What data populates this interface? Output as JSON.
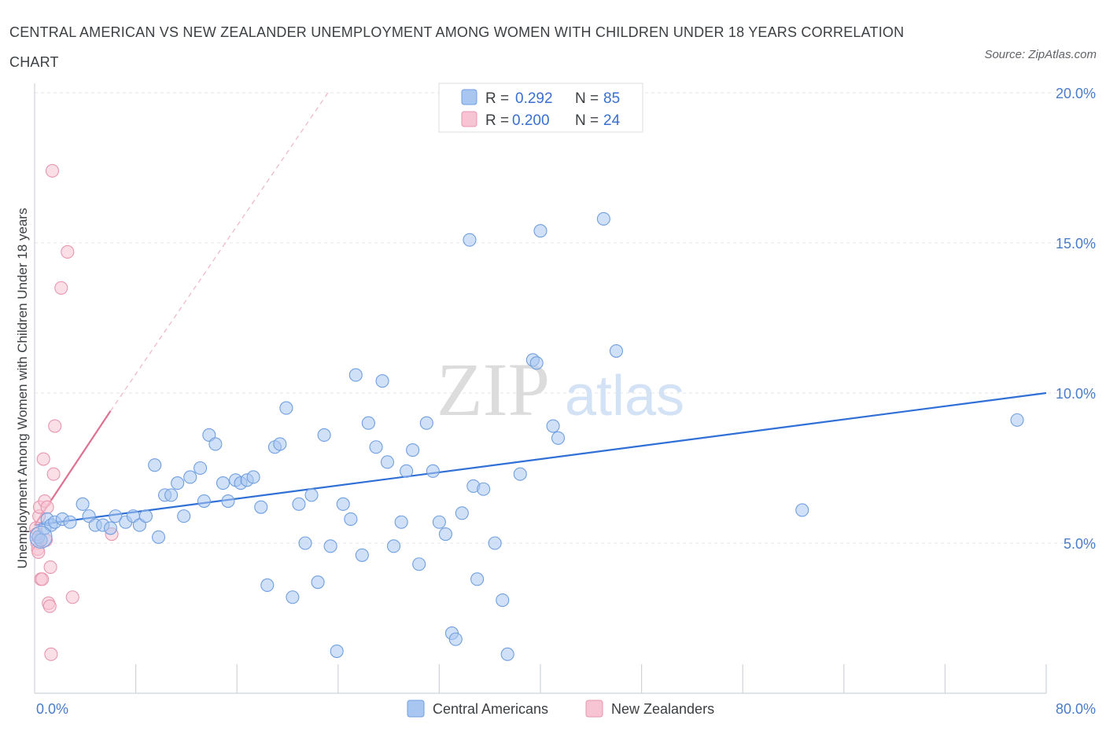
{
  "title": "CENTRAL AMERICAN VS NEW ZEALANDER UNEMPLOYMENT AMONG WOMEN WITH CHILDREN UNDER 18 YEARS CORRELATION CHART",
  "source": "Source: ZipAtlas.com",
  "watermark": {
    "zip": "ZIP",
    "atlas": "atlas"
  },
  "legend": {
    "r_label": "R =",
    "n_label": "N =",
    "entries": [
      {
        "r": "0.292",
        "n": "85",
        "color": "#a9c6f0",
        "stroke": "#6f9fe0"
      },
      {
        "r": "0.200",
        "n": "24",
        "color": "#f7c4d4",
        "stroke": "#e896b0"
      }
    ]
  },
  "bottom_legend": [
    "Central Americans",
    "New Zealanders"
  ],
  "chart_data": {
    "type": "scatter",
    "xlabel": "",
    "ylabel": "Unemployment Among Women with Children Under 18 years",
    "xlim": [
      0,
      80
    ],
    "ylim": [
      0,
      20
    ],
    "x_tick_labels": [
      "0.0%",
      "80.0%"
    ],
    "y_ticks": [
      5,
      10,
      15,
      20
    ],
    "y_tick_labels": [
      "5.0%",
      "10.0%",
      "15.0%",
      "20.0%"
    ],
    "grid": true,
    "legend_placement": "top-center",
    "series": [
      {
        "name": "Central Americans",
        "color": "#a9c6f0",
        "stroke": "#6f9fe0",
        "trend": {
          "x": [
            0,
            80
          ],
          "y": [
            5.6,
            10.0
          ],
          "color": "#2f6fd6"
        },
        "points": [
          [
            0.3,
            5.2
          ],
          [
            0.5,
            5.1
          ],
          [
            0.8,
            5.5
          ],
          [
            1.0,
            5.8
          ],
          [
            1.3,
            5.6
          ],
          [
            1.6,
            5.7
          ],
          [
            2.2,
            5.8
          ],
          [
            2.8,
            5.7
          ],
          [
            3.8,
            6.3
          ],
          [
            4.3,
            5.9
          ],
          [
            4.8,
            5.6
          ],
          [
            5.4,
            5.6
          ],
          [
            6.0,
            5.5
          ],
          [
            6.4,
            5.9
          ],
          [
            7.2,
            5.7
          ],
          [
            7.8,
            5.9
          ],
          [
            8.3,
            5.6
          ],
          [
            8.8,
            5.9
          ],
          [
            9.5,
            7.6
          ],
          [
            9.8,
            5.2
          ],
          [
            10.3,
            6.6
          ],
          [
            10.8,
            6.6
          ],
          [
            11.3,
            7.0
          ],
          [
            11.8,
            5.9
          ],
          [
            12.3,
            7.2
          ],
          [
            13.1,
            7.5
          ],
          [
            13.4,
            6.4
          ],
          [
            13.8,
            8.6
          ],
          [
            14.3,
            8.3
          ],
          [
            14.9,
            7.0
          ],
          [
            15.3,
            6.4
          ],
          [
            15.9,
            7.1
          ],
          [
            16.3,
            7.0
          ],
          [
            16.8,
            7.1
          ],
          [
            17.3,
            7.2
          ],
          [
            17.9,
            6.2
          ],
          [
            18.4,
            3.6
          ],
          [
            19.0,
            8.2
          ],
          [
            19.4,
            8.3
          ],
          [
            19.9,
            9.5
          ],
          [
            20.4,
            3.2
          ],
          [
            20.9,
            6.3
          ],
          [
            21.4,
            5.0
          ],
          [
            21.9,
            6.6
          ],
          [
            22.4,
            3.7
          ],
          [
            22.9,
            8.6
          ],
          [
            23.4,
            4.9
          ],
          [
            23.9,
            1.4
          ],
          [
            24.4,
            6.3
          ],
          [
            25.0,
            5.8
          ],
          [
            25.4,
            10.6
          ],
          [
            25.9,
            4.6
          ],
          [
            26.4,
            9.0
          ],
          [
            27.0,
            8.2
          ],
          [
            27.5,
            10.4
          ],
          [
            27.9,
            7.7
          ],
          [
            28.4,
            4.9
          ],
          [
            29.0,
            5.7
          ],
          [
            29.4,
            7.4
          ],
          [
            29.9,
            8.1
          ],
          [
            30.4,
            4.3
          ],
          [
            31.0,
            9.0
          ],
          [
            31.5,
            7.4
          ],
          [
            32.0,
            5.7
          ],
          [
            32.5,
            5.3
          ],
          [
            33.0,
            2.0
          ],
          [
            33.3,
            1.8
          ],
          [
            33.8,
            6.0
          ],
          [
            34.4,
            15.1
          ],
          [
            34.7,
            6.9
          ],
          [
            35.0,
            3.8
          ],
          [
            35.5,
            6.8
          ],
          [
            36.4,
            5.0
          ],
          [
            37.0,
            3.1
          ],
          [
            37.4,
            1.3
          ],
          [
            38.4,
            7.3
          ],
          [
            39.4,
            11.1
          ],
          [
            39.7,
            11.0
          ],
          [
            40.0,
            15.4
          ],
          [
            41.0,
            8.9
          ],
          [
            41.4,
            8.5
          ],
          [
            45.0,
            15.8
          ],
          [
            46.0,
            11.4
          ],
          [
            60.7,
            6.1
          ],
          [
            77.7,
            9.1
          ]
        ]
      },
      {
        "name": "New Zealanders",
        "color": "#f7c4d4",
        "stroke": "#e896b0",
        "trend": {
          "x": [
            0,
            6.0
          ],
          "y": [
            5.6,
            9.4
          ],
          "dashed_to": [
            23.2,
            20.0
          ],
          "color": "#e0708f"
        },
        "points": [
          [
            0.1,
            5.5
          ],
          [
            0.2,
            5.0
          ],
          [
            0.25,
            4.8
          ],
          [
            0.3,
            4.7
          ],
          [
            0.35,
            5.9
          ],
          [
            0.4,
            6.2
          ],
          [
            0.5,
            3.8
          ],
          [
            0.6,
            3.8
          ],
          [
            0.7,
            7.8
          ],
          [
            0.8,
            6.4
          ],
          [
            0.9,
            5.1
          ],
          [
            1.0,
            6.2
          ],
          [
            1.1,
            3.0
          ],
          [
            1.2,
            2.9
          ],
          [
            1.25,
            4.2
          ],
          [
            1.3,
            1.3
          ],
          [
            1.4,
            17.4
          ],
          [
            1.5,
            7.3
          ],
          [
            1.6,
            8.9
          ],
          [
            2.1,
            13.5
          ],
          [
            2.6,
            14.7
          ],
          [
            3.0,
            3.2
          ],
          [
            6.1,
            5.3
          ],
          [
            0.15,
            5.3
          ]
        ]
      }
    ]
  }
}
